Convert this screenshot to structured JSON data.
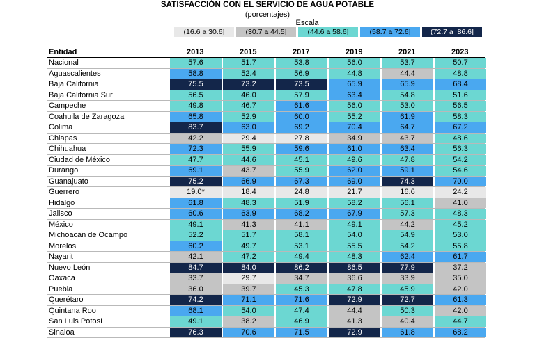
{
  "title": "SATISFACCIÓN CON EL SERVICIO DE AGUA POTABLE",
  "subtitle": "(porcentajes)",
  "escala_label": "Escala",
  "legend": [
    {
      "label": "(16.6 a 30.6]",
      "color": "#e8e8e8",
      "text_color": "#000000"
    },
    {
      "label": "(30.7 a 44.5]",
      "color": "#c4c4c4",
      "text_color": "#000000"
    },
    {
      "label": "(44.6 a 58.6]",
      "color": "#6cd7d2",
      "text_color": "#000000"
    },
    {
      "label": "(58.7 a 72.6]",
      "color": "#4aa8f0",
      "text_color": "#000000"
    },
    {
      "label": "(72.7 a  86.6]",
      "color": "#13264a",
      "text_color": "#ffffff"
    }
  ],
  "header": {
    "entidad": "Entidad",
    "years": [
      "2013",
      "2015",
      "2017",
      "2019",
      "2021",
      "2023"
    ]
  },
  "rows": [
    {
      "name": "Nacional",
      "values": [
        "57.6",
        "51.7",
        "53.8",
        "56.0",
        "53.7",
        "50.7"
      ]
    },
    {
      "name": "Aguascalientes",
      "values": [
        "58.8",
        "52.4",
        "56.9",
        "44.8",
        "44.4",
        "48.8"
      ]
    },
    {
      "name": "Baja California",
      "values": [
        "75.5",
        "73.2",
        "73.5",
        "65.9",
        "65.9",
        "68.4"
      ]
    },
    {
      "name": "Baja California Sur",
      "values": [
        "56.5",
        "46.0",
        "57.9",
        "63.4",
        "54.8",
        "51.6"
      ]
    },
    {
      "name": "Campeche",
      "values": [
        "49.8",
        "46.7",
        "61.6",
        "56.0",
        "53.0",
        "56.5"
      ]
    },
    {
      "name": "Coahuila de Zaragoza",
      "values": [
        "65.8",
        "52.9",
        "60.0",
        "55.2",
        "61.9",
        "58.3"
      ]
    },
    {
      "name": "Colima",
      "values": [
        "83.7",
        "63.0",
        "69.2",
        "70.4",
        "64.7",
        "67.2"
      ]
    },
    {
      "name": "Chiapas",
      "values": [
        "42.2",
        "29.4",
        "27.8",
        "34.9",
        "43.7",
        "48.6"
      ]
    },
    {
      "name": "Chihuahua",
      "values": [
        "72.3",
        "55.9",
        "59.6",
        "61.0",
        "63.4",
        "56.3"
      ]
    },
    {
      "name": "Ciudad de México",
      "values": [
        "47.7",
        "44.6",
        "45.1",
        "49.6",
        "47.8",
        "54.2"
      ]
    },
    {
      "name": "Durango",
      "values": [
        "69.1",
        "43.7",
        "55.9",
        "62.0",
        "59.1",
        "54.6"
      ]
    },
    {
      "name": "Guanajuato",
      "values": [
        "75.2",
        "66.9",
        "67.3",
        "69.0",
        "74.3",
        "70.0"
      ]
    },
    {
      "name": "Guerrero",
      "values": [
        "19.0*",
        "18.4",
        "24.8",
        "21.7",
        "16.6",
        "24.2"
      ]
    },
    {
      "name": "Hidalgo",
      "values": [
        "61.8",
        "48.3",
        "51.9",
        "58.2",
        "56.1",
        "41.0"
      ]
    },
    {
      "name": "Jalisco",
      "values": [
        "60.6",
        "63.9",
        "68.2",
        "67.9",
        "57.3",
        "48.3"
      ]
    },
    {
      "name": "México",
      "values": [
        "49.1",
        "41.3",
        "41.1",
        "49.1",
        "44.2",
        "45.2"
      ]
    },
    {
      "name": "Michoacán de Ocampo",
      "values": [
        "52.2",
        "51.7",
        "58.1",
        "54.0",
        "54.9",
        "53.0"
      ]
    },
    {
      "name": "Morelos",
      "values": [
        "60.2",
        "49.7",
        "53.1",
        "55.5",
        "54.2",
        "55.8"
      ]
    },
    {
      "name": "Nayarit",
      "values": [
        "42.1",
        "47.2",
        "49.4",
        "48.3",
        "62.4",
        "61.7"
      ]
    },
    {
      "name": "Nuevo León",
      "values": [
        "84.7",
        "84.0",
        "86.2",
        "86.5",
        "77.9",
        "37.2"
      ]
    },
    {
      "name": "Oaxaca",
      "values": [
        "33.7",
        "29.7",
        "34.7",
        "36.6",
        "33.9",
        "35.0"
      ]
    },
    {
      "name": "Puebla",
      "values": [
        "36.0",
        "39.7",
        "45.3",
        "47.8",
        "45.9",
        "42.0"
      ]
    },
    {
      "name": "Querétaro",
      "values": [
        "74.2",
        "71.1",
        "71.6",
        "72.9",
        "72.7",
        "61.3"
      ]
    },
    {
      "name": "Quintana Roo",
      "values": [
        "68.1",
        "54.0",
        "47.4",
        "44.4",
        "50.3",
        "42.0"
      ]
    },
    {
      "name": "San Luis Potosí",
      "values": [
        "49.1",
        "38.2",
        "46.9",
        "41.3",
        "40.4",
        "44.7"
      ]
    },
    {
      "name": "Sinaloa",
      "values": [
        "76.3",
        "70.6",
        "71.5",
        "72.9",
        "61.8",
        "68.2"
      ]
    }
  ]
}
